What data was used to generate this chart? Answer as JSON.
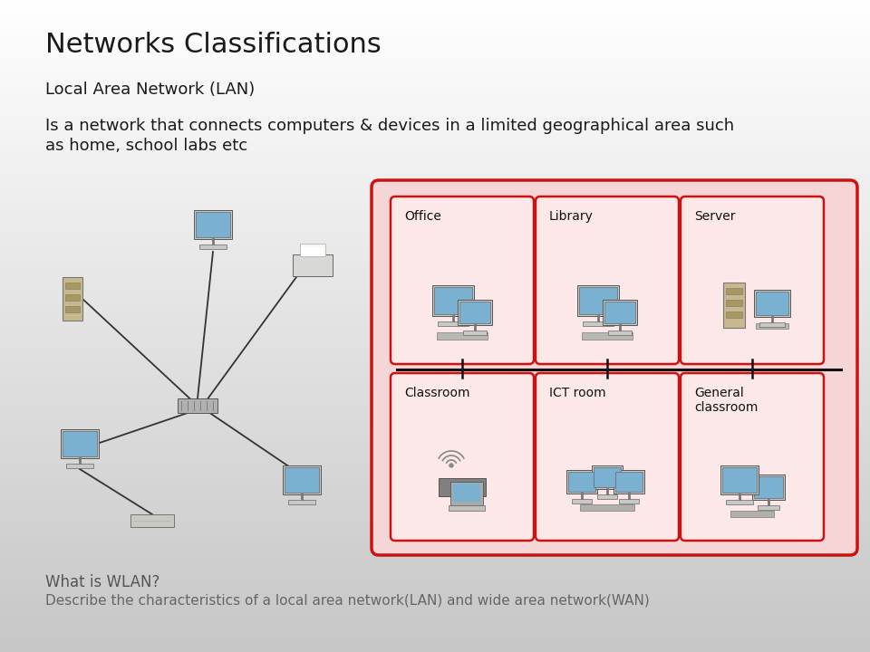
{
  "title": "Networks Classifications",
  "subtitle": "Local Area Network (LAN)",
  "description_line1": "Is a network that connects computers & devices in a limited geographical area such",
  "description_line2": "as home, school labs etc",
  "footer_line1": "What is WLAN?",
  "footer_line2": "Describe the characteristics of a local area network(LAN) and wide area network(WAN)",
  "title_fontsize": 22,
  "subtitle_fontsize": 13,
  "desc_fontsize": 13,
  "footer1_fontsize": 12,
  "footer2_fontsize": 11,
  "text_color": "#1a1a1a",
  "right_box_bg": "#f5d5d5",
  "right_box_border": "#cc1111",
  "right_outer_border": "#88cccc",
  "room_box_bg": "#fce8e8",
  "room_box_border": "#cc1111",
  "backbone_color": "#111111",
  "cable_color": "#333333",
  "monitor_screen": "#7ab0d0",
  "monitor_body": "#c8c8c4",
  "server_body": "#b8b8b0",
  "printer_body": "#d8d8d4",
  "switch_body": "#b0b0b0",
  "bg_top": "#ffffff",
  "bg_bottom": "#c8c8c8"
}
